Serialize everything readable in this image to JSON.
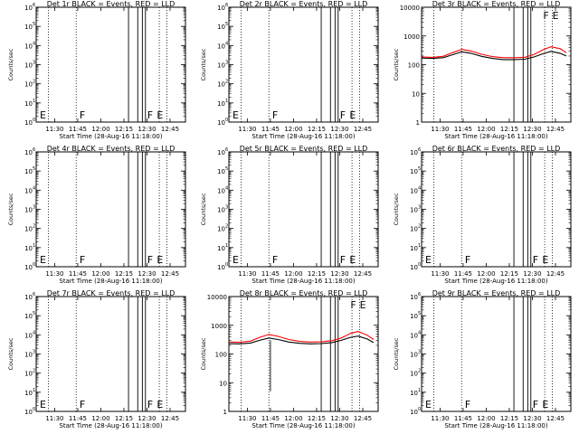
{
  "chart_data": [
    {
      "type": "line",
      "title": "Det 1r BLACK = Events, RED = LLD",
      "xlabel": "Start Time (28-Aug-16 11:18:00)",
      "ylabel": "Counts/sec",
      "xticks": [
        "11:30",
        "11:45",
        "12:00",
        "12:15",
        "12:30",
        "12:45"
      ],
      "yscale": "log",
      "ylim": [
        1,
        1000000
      ],
      "markers": [
        "E",
        "F",
        "F",
        "E"
      ],
      "series": []
    },
    {
      "type": "line",
      "title": "Det 2r BLACK = Events, RED = LLD",
      "xlabel": "Start Time (28-Aug-16 11:18:00)",
      "ylabel": "Counts/sec",
      "xticks": [
        "11:30",
        "11:45",
        "12:00",
        "12:15",
        "12:30",
        "12:45"
      ],
      "yscale": "log",
      "ylim": [
        1,
        1000000
      ],
      "markers": [
        "E",
        "F",
        "F",
        "E"
      ],
      "series": []
    },
    {
      "type": "line",
      "title": "Det 3r BLACK = Events, RED = LLD",
      "xlabel": "Start Time (28-Aug-16 11:18:00)",
      "ylabel": "Counts/sec",
      "xticks": [
        "11:30",
        "11:45",
        "12:00",
        "12:15",
        "12:30",
        "12:45"
      ],
      "yscale": "log",
      "ylim": [
        1,
        10000
      ],
      "markers": [
        "F",
        "E"
      ],
      "series": [
        {
          "color": "#000000",
          "x": [
            "11:18",
            "11:25",
            "11:32",
            "11:38",
            "11:44",
            "11:50",
            "11:57",
            "12:04",
            "12:11",
            "12:18",
            "12:25",
            "12:31",
            "12:37",
            "12:42",
            "12:48",
            "12:52"
          ],
          "values": [
            170,
            165,
            175,
            220,
            280,
            250,
            195,
            165,
            150,
            150,
            155,
            185,
            240,
            290,
            250,
            200
          ]
        },
        {
          "color": "#ff0000",
          "x": [
            "11:18",
            "11:25",
            "11:32",
            "11:38",
            "11:44",
            "11:50",
            "11:57",
            "12:04",
            "12:11",
            "12:18",
            "12:25",
            "12:31",
            "12:37",
            "12:42",
            "12:48",
            "12:52"
          ],
          "values": [
            185,
            180,
            195,
            260,
            340,
            300,
            230,
            190,
            175,
            175,
            180,
            225,
            330,
            420,
            360,
            260
          ]
        }
      ]
    },
    {
      "type": "line",
      "title": "Det 4r BLACK = Events, RED = LLD",
      "xlabel": "Start Time (28-Aug-16 11:18:00)",
      "ylabel": "Counts/sec",
      "xticks": [
        "11:30",
        "11:45",
        "12:00",
        "12:15",
        "12:30",
        "12:45"
      ],
      "yscale": "log",
      "ylim": [
        1,
        1000000
      ],
      "markers": [
        "E",
        "F",
        "F",
        "E"
      ],
      "series": []
    },
    {
      "type": "line",
      "title": "Det 5r BLACK = Events, RED = LLD",
      "xlabel": "Start Time (28-Aug-16 11:18:00)",
      "ylabel": "Counts/sec",
      "xticks": [
        "11:30",
        "11:45",
        "12:00",
        "12:15",
        "12:30",
        "12:45"
      ],
      "yscale": "log",
      "ylim": [
        1,
        1000000
      ],
      "markers": [
        "E",
        "F",
        "F",
        "E"
      ],
      "series": []
    },
    {
      "type": "line",
      "title": "Det 6r BLACK = Events, RED = LLD",
      "xlabel": "Start Time (28-Aug-16 11:18:00)",
      "ylabel": "Counts/sec",
      "xticks": [
        "11:30",
        "11:45",
        "12:00",
        "12:15",
        "12:30",
        "12:45"
      ],
      "yscale": "log",
      "ylim": [
        1,
        1000000
      ],
      "markers": [
        "E",
        "F",
        "F",
        "E"
      ],
      "series": []
    },
    {
      "type": "line",
      "title": "Det 7r BLACK = Events, RED = LLD",
      "xlabel": "Start Time (28-Aug-16 11:18:00)",
      "ylabel": "Counts/sec",
      "xticks": [
        "11:30",
        "11:45",
        "12:00",
        "12:15",
        "12:30",
        "12:45"
      ],
      "yscale": "log",
      "ylim": [
        1,
        1000000
      ],
      "markers": [
        "E",
        "F",
        "F",
        "E"
      ],
      "series": []
    },
    {
      "type": "line",
      "title": "Det 8r BLACK = Events, RED = LLD",
      "xlabel": "Start Time (28-Aug-16 11:18:00)",
      "ylabel": "Counts/sec",
      "xticks": [
        "11:30",
        "11:45",
        "12:00",
        "12:15",
        "12:30",
        "12:45"
      ],
      "yscale": "log",
      "ylim": [
        1,
        10000
      ],
      "markers": [
        "F",
        "E"
      ],
      "series": [
        {
          "color": "#000000",
          "x": [
            "11:18",
            "11:25",
            "11:32",
            "11:38",
            "11:44",
            "11:50",
            "11:57",
            "12:04",
            "12:11",
            "12:18",
            "12:25",
            "12:31",
            "12:37",
            "12:42",
            "12:48",
            "12:52"
          ],
          "values": [
            230,
            225,
            240,
            300,
            360,
            320,
            260,
            235,
            225,
            230,
            250,
            300,
            380,
            420,
            330,
            250
          ]
        },
        {
          "color": "#ff0000",
          "x": [
            "11:18",
            "11:25",
            "11:32",
            "11:38",
            "11:44",
            "11:50",
            "11:57",
            "12:04",
            "12:11",
            "12:18",
            "12:25",
            "12:31",
            "12:37",
            "12:42",
            "12:48",
            "12:52"
          ],
          "values": [
            260,
            255,
            280,
            380,
            480,
            410,
            320,
            275,
            260,
            265,
            290,
            360,
            520,
            610,
            450,
            320
          ]
        }
      ]
    },
    {
      "type": "line",
      "title": "Det 9r BLACK = Events, RED = LLD",
      "xlabel": "Start Time (28-Aug-16 11:18:00)",
      "ylabel": "Counts/sec",
      "xticks": [
        "11:30",
        "11:45",
        "12:00",
        "12:15",
        "12:30",
        "12:45"
      ],
      "yscale": "log",
      "ylim": [
        1,
        1000000
      ],
      "markers": [
        "E",
        "F",
        "F",
        "E"
      ],
      "series": []
    }
  ]
}
